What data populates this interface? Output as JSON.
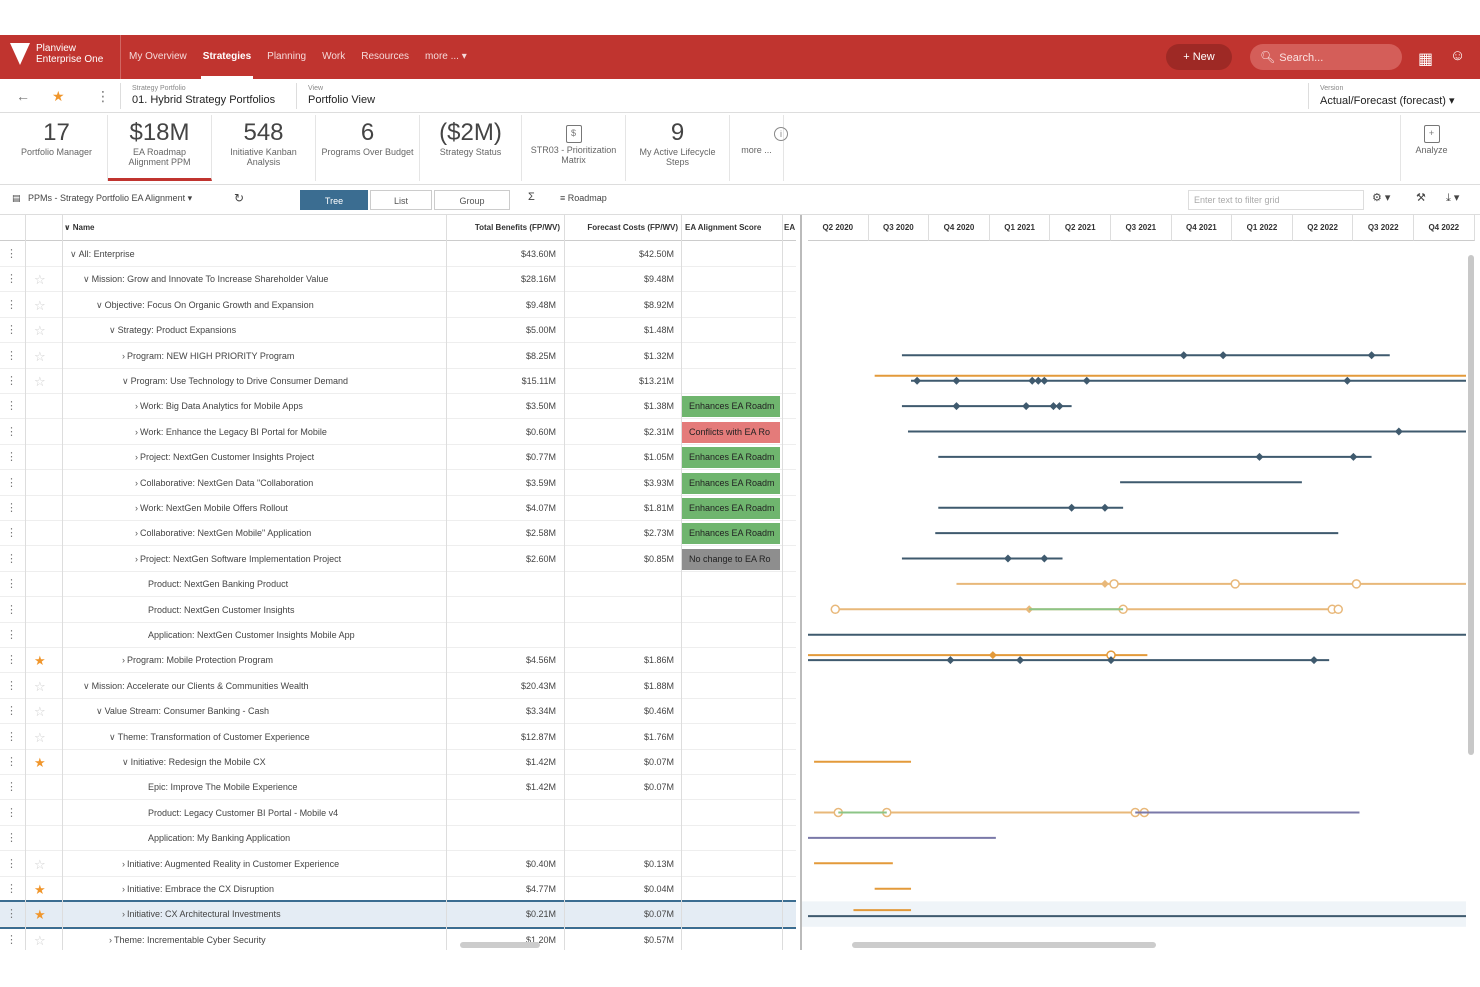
{
  "app": {
    "logo_line1": "Planview",
    "logo_line2": "Enterprise One",
    "nav": [
      "My Overview",
      "Strategies",
      "Planning",
      "Work",
      "Resources",
      "more ... ▾"
    ],
    "active_nav": 1,
    "new_label": "+ New",
    "search_placeholder": "Search..."
  },
  "context": {
    "portfolio_label": "Strategy Portfolio",
    "portfolio_value": "01. Hybrid Strategy Portfolios",
    "view_label": "View",
    "view_value": "Portfolio View",
    "version_label": "Version",
    "version_value": "Actual/Forecast (forecast) ▾"
  },
  "tiles": [
    {
      "big": "17",
      "small": "Portfolio Manager"
    },
    {
      "big": "$18M",
      "small": "EA Roadmap Alignment PPM"
    },
    {
      "big": "548",
      "small": "Initiative Kanban Analysis"
    },
    {
      "big": "6",
      "small": "Programs Over Budget"
    },
    {
      "big": "($2M)",
      "small": "Strategy Status"
    },
    {
      "big": "",
      "small": "STR03 - Prioritization Matrix"
    },
    {
      "big": "9",
      "small": "My Active Lifecycle Steps"
    },
    {
      "big": "",
      "small": "more ..."
    },
    {
      "big": "",
      "small": "Analyze"
    }
  ],
  "toolbar": {
    "grid_name": "PPMs - Strategy Portfolio EA Alignment ▾",
    "tree": "Tree",
    "list": "List",
    "group": "Group",
    "roadmap": "Roadmap",
    "filter_placeholder": "Enter text to filter grid"
  },
  "grid": {
    "columns": {
      "name": "Name",
      "total_benefits": "Total Benefits (FP/WV)",
      "forecast_costs": "Forecast Costs (FP/WV)",
      "ea_score": "EA Alignment Score",
      "extra": "EA"
    },
    "rows": [
      {
        "indent": 0,
        "chev": "∨",
        "star": null,
        "name": "All: Enterprise",
        "tb": "$43.60M",
        "fc": "$42.50M",
        "ea": "",
        "eac": ""
      },
      {
        "indent": 1,
        "chev": "∨",
        "star": false,
        "name": "Mission: Grow and Innovate To Increase Shareholder Value",
        "tb": "$28.16M",
        "fc": "$9.48M",
        "ea": "",
        "eac": ""
      },
      {
        "indent": 2,
        "chev": "∨",
        "star": false,
        "name": "Objective: Focus On Organic Growth and Expansion",
        "tb": "$9.48M",
        "fc": "$8.92M",
        "ea": "",
        "eac": ""
      },
      {
        "indent": 3,
        "chev": "∨",
        "star": false,
        "name": "Strategy: Product Expansions",
        "tb": "$5.00M",
        "fc": "$1.48M",
        "ea": "",
        "eac": ""
      },
      {
        "indent": 4,
        "chev": "›",
        "star": false,
        "name": "Program: NEW HIGH PRIORITY Program",
        "tb": "$8.25M",
        "fc": "$1.32M",
        "ea": "",
        "eac": ""
      },
      {
        "indent": 4,
        "chev": "∨",
        "star": false,
        "name": "Program: Use Technology to Drive Consumer Demand",
        "tb": "$15.11M",
        "fc": "$13.21M",
        "ea": "",
        "eac": ""
      },
      {
        "indent": 5,
        "chev": "›",
        "star": null,
        "name": "Work: Big Data Analytics for Mobile Apps",
        "tb": "$3.50M",
        "fc": "$1.38M",
        "ea": "Enhances EA Roadm",
        "eac": "green"
      },
      {
        "indent": 5,
        "chev": "›",
        "star": null,
        "name": "Work: Enhance the Legacy BI Portal for Mobile",
        "tb": "$0.60M",
        "fc": "$2.31M",
        "ea": "Conflicts with EA Ro",
        "eac": "red"
      },
      {
        "indent": 5,
        "chev": "›",
        "star": null,
        "name": "Project: NextGen Customer Insights Project",
        "tb": "$0.77M",
        "fc": "$1.05M",
        "ea": "Enhances EA Roadm",
        "eac": "green"
      },
      {
        "indent": 5,
        "chev": "›",
        "star": null,
        "name": "Collaborative: NextGen Data \"Collaboration",
        "tb": "$3.59M",
        "fc": "$3.93M",
        "ea": "Enhances EA Roadm",
        "eac": "green"
      },
      {
        "indent": 5,
        "chev": "›",
        "star": null,
        "name": "Work: NextGen Mobile Offers Rollout",
        "tb": "$4.07M",
        "fc": "$1.81M",
        "ea": "Enhances EA Roadm",
        "eac": "green"
      },
      {
        "indent": 5,
        "chev": "›",
        "star": null,
        "name": "Collaborative: NextGen Mobile\" Application",
        "tb": "$2.58M",
        "fc": "$2.73M",
        "ea": "Enhances EA Roadm",
        "eac": "green"
      },
      {
        "indent": 5,
        "chev": "›",
        "star": null,
        "name": "Project: NextGen Software Implementation Project",
        "tb": "$2.60M",
        "fc": "$0.85M",
        "ea": "No change to EA Ro",
        "eac": "gray"
      },
      {
        "indent": 6,
        "chev": "",
        "star": null,
        "name": "Product: NextGen Banking Product",
        "tb": "",
        "fc": "",
        "ea": "",
        "eac": ""
      },
      {
        "indent": 6,
        "chev": "",
        "star": null,
        "name": "Product: NextGen Customer Insights",
        "tb": "",
        "fc": "",
        "ea": "",
        "eac": ""
      },
      {
        "indent": 6,
        "chev": "",
        "star": null,
        "name": "Application: NextGen Customer Insights Mobile App",
        "tb": "",
        "fc": "",
        "ea": "",
        "eac": ""
      },
      {
        "indent": 4,
        "chev": "›",
        "star": true,
        "name": "Program: Mobile Protection Program",
        "tb": "$4.56M",
        "fc": "$1.86M",
        "ea": "",
        "eac": ""
      },
      {
        "indent": 1,
        "chev": "∨",
        "star": false,
        "name": "Mission: Accelerate our Clients & Communities Wealth",
        "tb": "$20.43M",
        "fc": "$1.88M",
        "ea": "",
        "eac": ""
      },
      {
        "indent": 2,
        "chev": "∨",
        "star": false,
        "name": "Value Stream: Consumer Banking - Cash",
        "tb": "$3.34M",
        "fc": "$0.46M",
        "ea": "",
        "eac": ""
      },
      {
        "indent": 3,
        "chev": "∨",
        "star": false,
        "name": "Theme: Transformation of Customer Experience",
        "tb": "$12.87M",
        "fc": "$1.76M",
        "ea": "",
        "eac": ""
      },
      {
        "indent": 4,
        "chev": "∨",
        "star": true,
        "name": "Initiative: Redesign the Mobile CX",
        "tb": "$1.42M",
        "fc": "$0.07M",
        "ea": "",
        "eac": ""
      },
      {
        "indent": 6,
        "chev": "",
        "star": null,
        "name": "Epic: Improve The Mobile Experience",
        "tb": "$1.42M",
        "fc": "$0.07M",
        "ea": "",
        "eac": ""
      },
      {
        "indent": 6,
        "chev": "",
        "star": null,
        "name": "Product: Legacy Customer BI Portal - Mobile v4",
        "tb": "",
        "fc": "",
        "ea": "",
        "eac": ""
      },
      {
        "indent": 6,
        "chev": "",
        "star": null,
        "name": "Application: My Banking Application",
        "tb": "",
        "fc": "",
        "ea": "",
        "eac": ""
      },
      {
        "indent": 4,
        "chev": "›",
        "star": false,
        "name": "Initiative: Augmented Reality in Customer Experience",
        "tb": "$0.40M",
        "fc": "$0.13M",
        "ea": "",
        "eac": ""
      },
      {
        "indent": 4,
        "chev": "›",
        "star": true,
        "name": "Initiative: Embrace the CX Disruption",
        "tb": "$4.77M",
        "fc": "$0.04M",
        "ea": "",
        "eac": ""
      },
      {
        "indent": 4,
        "chev": "›",
        "star": true,
        "name": "Initiative: CX Architectural Investments",
        "tb": "$0.21M",
        "fc": "$0.07M",
        "ea": "",
        "eac": "",
        "selected": true
      },
      {
        "indent": 3,
        "chev": "›",
        "star": false,
        "name": "Theme: Incrementable Cyber Security",
        "tb": "$1.20M",
        "fc": "$0.57M",
        "ea": "",
        "eac": ""
      }
    ]
  },
  "colors": {
    "brand": "#c0342f",
    "green": "#6fb56e",
    "red": "#e47b7a",
    "gray": "#8e8e8e",
    "navy": "#3f5a6e",
    "orange": "#e39a3a",
    "lightorange": "#e8b87a",
    "lightgreen": "#8cc587",
    "purple": "#7a78a8"
  },
  "timeline": {
    "quarters": [
      "Q2 2020",
      "Q3 2020",
      "Q4 2020",
      "Q1 2021",
      "Q2 2021",
      "Q3 2021",
      "Q4 2021",
      "Q1 2022",
      "Q2 2022",
      "Q3 2022",
      "Q4 2022"
    ],
    "bars": [
      {
        "row": 4,
        "color": "navy",
        "start": 1.55,
        "end": 9.6,
        "marks": [
          6.2,
          6.85,
          9.3
        ],
        "hollow": []
      },
      {
        "row": 5,
        "color": "orange",
        "start": 1.1,
        "end": 11.0,
        "marks": [],
        "hollow": [],
        "offset": -5
      },
      {
        "row": 5,
        "color": "navy",
        "start": 1.7,
        "end": 11.0,
        "marks": [
          1.8,
          2.45,
          3.7,
          3.8,
          3.9,
          4.6,
          8.9
        ],
        "hollow": []
      },
      {
        "row": 6,
        "color": "navy",
        "start": 1.55,
        "end": 4.35,
        "marks": [
          2.45,
          3.6,
          4.05,
          4.15
        ],
        "hollow": []
      },
      {
        "row": 7,
        "color": "navy",
        "start": 1.65,
        "end": 11.0,
        "marks": [
          9.75
        ],
        "hollow": []
      },
      {
        "row": 8,
        "color": "navy",
        "start": 2.15,
        "end": 9.3,
        "marks": [
          7.45,
          9.0
        ],
        "hollow": []
      },
      {
        "row": 9,
        "color": "navy",
        "start": 5.15,
        "end": 8.15,
        "marks": [],
        "hollow": []
      },
      {
        "row": 10,
        "color": "navy",
        "start": 2.15,
        "end": 5.2,
        "marks": [
          4.35,
          4.9
        ],
        "hollow": []
      },
      {
        "row": 11,
        "color": "navy",
        "start": 2.1,
        "end": 8.75,
        "marks": [],
        "hollow": []
      },
      {
        "row": 12,
        "color": "navy",
        "start": 1.55,
        "end": 4.2,
        "marks": [
          3.3,
          3.9
        ],
        "hollow": []
      },
      {
        "row": 13,
        "color": "lightorange",
        "start": 2.45,
        "end": 11.0,
        "marks": [
          4.9
        ],
        "hollow": [
          5.05,
          7.05,
          9.05
        ]
      },
      {
        "row": 14,
        "color": "lightorange",
        "start": 0.45,
        "end": 8.75,
        "marks": [
          3.65
        ],
        "hollow": [
          0.45,
          5.2,
          8.65,
          8.75
        ]
      },
      {
        "row": 14,
        "color": "lightgreen",
        "start": 3.65,
        "end": 5.2,
        "marks": [],
        "hollow": []
      },
      {
        "row": 15,
        "color": "navy",
        "start": 0.0,
        "end": 11.0,
        "marks": [],
        "hollow": []
      },
      {
        "row": 16,
        "color": "orange",
        "start": 0.0,
        "end": 5.6,
        "marks": [
          3.05
        ],
        "hollow": [
          5.0
        ],
        "offset": -5
      },
      {
        "row": 16,
        "color": "navy",
        "start": 0.0,
        "end": 8.6,
        "marks": [
          2.35,
          3.5,
          5.0,
          8.35
        ],
        "hollow": []
      },
      {
        "row": 20,
        "color": "orange",
        "start": 0.1,
        "end": 1.7,
        "marks": [],
        "hollow": []
      },
      {
        "row": 22,
        "color": "lightorange",
        "start": 0.1,
        "end": 9.1,
        "marks": [],
        "hollow": [
          0.5,
          1.3,
          5.4,
          5.55
        ]
      },
      {
        "row": 22,
        "color": "lightgreen",
        "start": 0.5,
        "end": 1.3,
        "marks": [],
        "hollow": []
      },
      {
        "row": 22,
        "color": "purple",
        "start": 5.4,
        "end": 9.1,
        "marks": [],
        "hollow": []
      },
      {
        "row": 23,
        "color": "purple",
        "start": 0.0,
        "end": 3.1,
        "marks": [],
        "hollow": []
      },
      {
        "row": 24,
        "color": "orange",
        "start": 0.1,
        "end": 1.4,
        "marks": [],
        "hollow": []
      },
      {
        "row": 25,
        "color": "orange",
        "start": 1.1,
        "end": 1.7,
        "marks": [],
        "hollow": []
      },
      {
        "row": 26,
        "color": "orange",
        "start": 0.75,
        "end": 1.7,
        "marks": [],
        "hollow": [],
        "offset": -4
      },
      {
        "row": 26,
        "color": "navy",
        "start": 0.0,
        "end": 11.0,
        "marks": [],
        "hollow": [],
        "offset": 2
      }
    ]
  }
}
